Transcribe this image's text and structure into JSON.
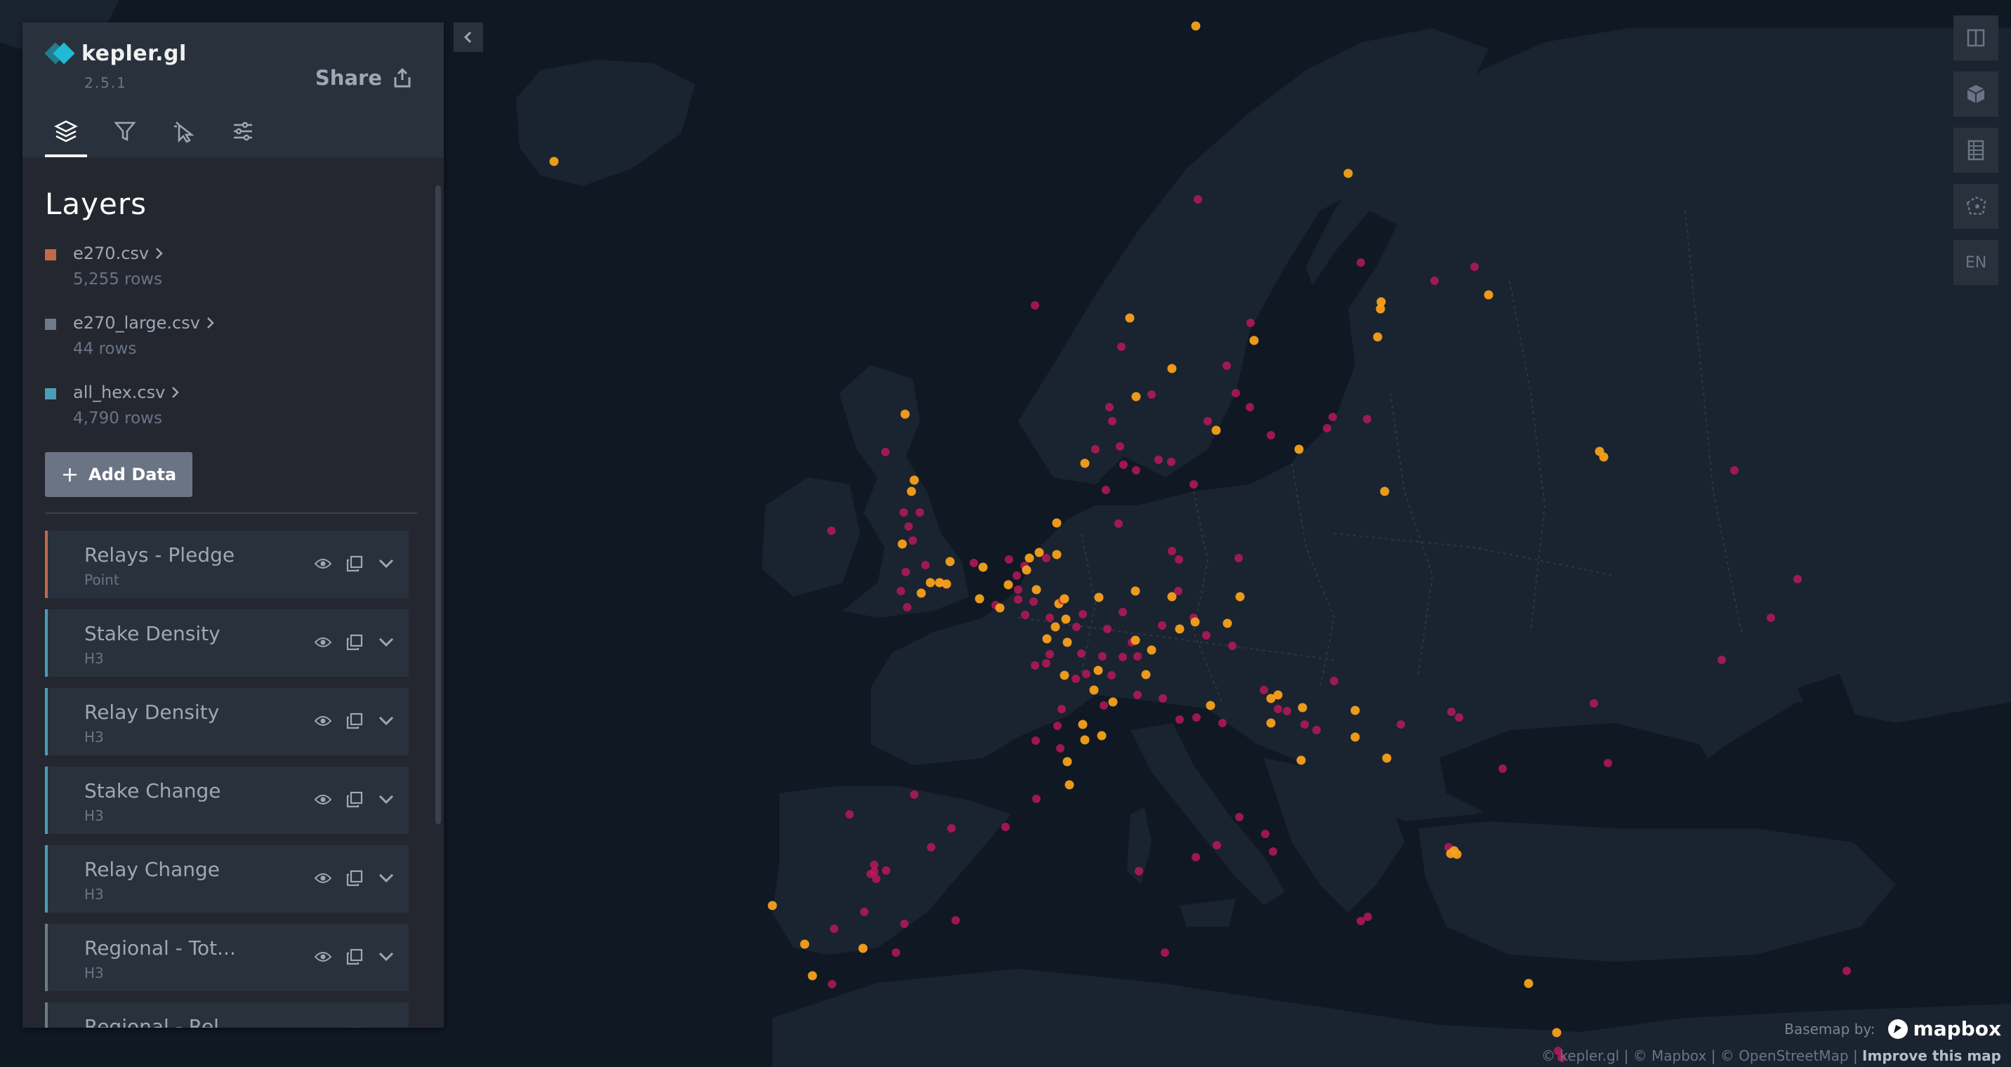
{
  "app": {
    "name": "kepler.gl",
    "version": "2.5.1",
    "share_label": "Share"
  },
  "panel_tabs": [
    {
      "icon": "layers-icon",
      "active": true
    },
    {
      "icon": "filter-icon",
      "active": false
    },
    {
      "icon": "interaction-icon",
      "active": false
    },
    {
      "icon": "map-style-icon",
      "active": false
    }
  ],
  "layers_title": "Layers",
  "datasets": [
    {
      "name": "e270.csv",
      "rows": "5,255 rows",
      "color": "#c06a48"
    },
    {
      "name": "e270_large.csv",
      "rows": "44 rows",
      "color": "#6f7a88"
    },
    {
      "name": "all_hex.csv",
      "rows": "4,790 rows",
      "color": "#4b9eb8"
    }
  ],
  "add_data_label": "Add Data",
  "layers": [
    {
      "name": "Relays - Pledge",
      "type": "Point",
      "color": "#c06a48"
    },
    {
      "name": "Stake Density",
      "type": "H3",
      "color": "#4b9eb8"
    },
    {
      "name": "Relay Density",
      "type": "H3",
      "color": "#4b9eb8"
    },
    {
      "name": "Stake Change",
      "type": "H3",
      "color": "#4b9eb8"
    },
    {
      "name": "Relay Change",
      "type": "H3",
      "color": "#4b9eb8"
    },
    {
      "name": "Regional - Tot...",
      "type": "H3",
      "color": "#6f7a88"
    },
    {
      "name": "Regional - Rel...",
      "type": "",
      "color": "#6f7a88"
    }
  ],
  "map_controls": {
    "split_icon": "split-map-icon",
    "view_3d_icon": "cube-icon",
    "legend_icon": "legend-icon",
    "draw_icon": "draw-polygon-icon",
    "locale_label": "EN"
  },
  "attribution": {
    "basemap_label": "Basemap by:",
    "mapbox_label": "mapbox",
    "credits": "© kepler.gl | © Mapbox | © OpenStreetMap | ",
    "improve_label": "Improve this map"
  },
  "point_colors": {
    "orange": "#f7a11a",
    "red": "#c2185b",
    "dark": "#7a1f3d"
  }
}
